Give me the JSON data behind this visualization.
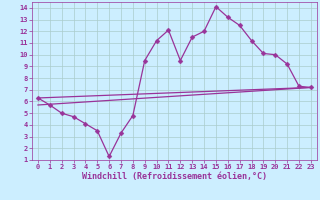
{
  "xlabel": "Windchill (Refroidissement éolien,°C)",
  "background_color": "#cceeff",
  "line_color": "#993399",
  "grid_color": "#aacccc",
  "xlim": [
    -0.5,
    23.5
  ],
  "ylim": [
    1,
    14.5
  ],
  "xticks": [
    0,
    1,
    2,
    3,
    4,
    5,
    6,
    7,
    8,
    9,
    10,
    11,
    12,
    13,
    14,
    15,
    16,
    17,
    18,
    19,
    20,
    21,
    22,
    23
  ],
  "yticks": [
    1,
    2,
    3,
    4,
    5,
    6,
    7,
    8,
    9,
    10,
    11,
    12,
    13,
    14
  ],
  "line1_x": [
    0,
    1,
    2,
    3,
    4,
    5,
    6,
    7,
    8,
    9,
    10,
    11,
    12,
    13,
    14,
    15,
    16,
    17,
    18,
    19,
    20,
    21,
    22,
    23
  ],
  "line1_y": [
    6.3,
    5.7,
    5.0,
    4.7,
    4.1,
    3.5,
    1.3,
    3.3,
    4.8,
    9.5,
    11.2,
    12.1,
    9.5,
    11.5,
    12.0,
    14.1,
    13.2,
    12.5,
    11.2,
    10.1,
    10.0,
    9.2,
    7.3,
    7.2
  ],
  "line2_x": [
    0,
    23
  ],
  "line2_y": [
    6.3,
    7.2
  ],
  "line3_x": [
    0,
    23
  ],
  "line3_y": [
    5.7,
    7.2
  ],
  "marker": "D",
  "markersize": 2.5,
  "linewidth": 0.9,
  "tick_fontsize": 5,
  "label_fontsize": 6
}
